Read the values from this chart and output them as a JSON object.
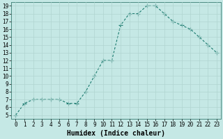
{
  "x": [
    0,
    1,
    2,
    3,
    4,
    5,
    6,
    7,
    8,
    9,
    10,
    11,
    12,
    13,
    14,
    15,
    16,
    17,
    18,
    19,
    20,
    21,
    22,
    23
  ],
  "y": [
    5,
    6.5,
    7,
    7,
    7,
    7,
    6.5,
    6.5,
    8,
    10,
    12,
    12,
    16.5,
    18,
    18,
    19,
    19,
    18,
    17,
    16.5,
    16,
    15,
    14,
    13
  ],
  "line_color": "#1a7a6e",
  "marker": "+",
  "bg_color": "#c5e8e5",
  "grid_color": "#b0d4d0",
  "xlabel": "Humidex (Indice chaleur)",
  "xlim": [
    -0.5,
    23.5
  ],
  "ylim": [
    4.5,
    19.5
  ],
  "yticks": [
    5,
    6,
    7,
    8,
    9,
    10,
    11,
    12,
    13,
    14,
    15,
    16,
    17,
    18,
    19
  ],
  "xticks": [
    0,
    1,
    2,
    3,
    4,
    5,
    6,
    7,
    8,
    9,
    10,
    11,
    12,
    13,
    14,
    15,
    16,
    17,
    18,
    19,
    20,
    21,
    22,
    23
  ],
  "tick_fontsize": 5.5,
  "xlabel_fontsize": 7,
  "line_width": 0.8,
  "marker_size": 4,
  "marker_ew": 0.8
}
